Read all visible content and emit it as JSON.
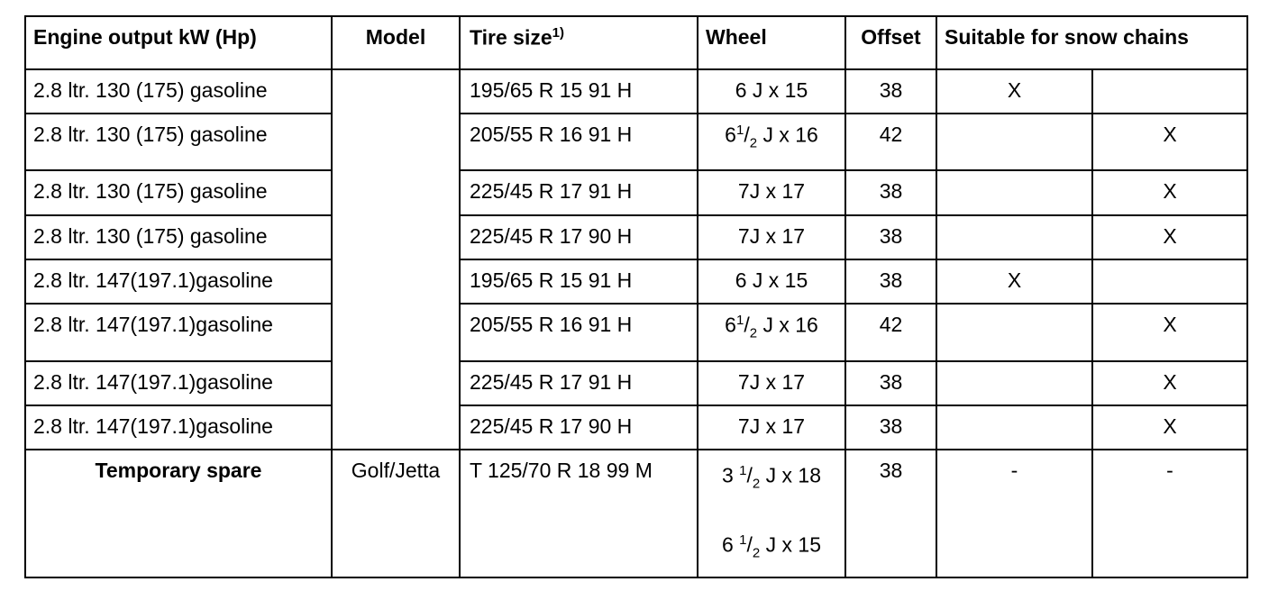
{
  "table": {
    "header": {
      "engine": "Engine output kW (Hp)",
      "model": "Model",
      "tire": {
        "text": "Tire size",
        "note": "1)"
      },
      "wheel": "Wheel",
      "offset": "Offset",
      "snow": "Suitable for snow chains"
    },
    "rows": [
      {
        "engine": "2.8 ltr. 130 (175) gasoline",
        "tire": "195/65 R 15 91 H",
        "wheel": "6 J x 15",
        "offset": 38,
        "snow_left": "X"
      },
      {
        "engine": "2.8 ltr. 130 (175) gasoline",
        "tire": "205/55 R 16 91 H",
        "wheel": {
          "whole": "6",
          "num": "1",
          "den": "2",
          "rest": "J x 16"
        },
        "offset": 42,
        "snow_right": "X"
      },
      {
        "engine": "2.8 ltr. 130 (175) gasoline",
        "tire": "225/45 R 17 91 H",
        "wheel": "7J x 17",
        "offset": 38,
        "snow_right": "X"
      },
      {
        "engine": "2.8 ltr. 130 (175) gasoline",
        "tire": "225/45 R 17 90 H",
        "wheel": "7J x 17",
        "offset": 38,
        "snow_right": "X"
      },
      {
        "engine": "2.8 ltr. 147(197.1)gasoline",
        "tire": "195/65 R 15 91 H",
        "wheel": "6 J x 15",
        "offset": 38,
        "snow_left": "X"
      },
      {
        "engine": "2.8 ltr. 147(197.1)gasoline",
        "tire": "205/55 R 16 91 H",
        "wheel": {
          "whole": "6",
          "num": "1",
          "den": "2",
          "rest": "J x 16"
        },
        "offset": 42,
        "snow_right": "X"
      },
      {
        "engine": "2.8 ltr. 147(197.1)gasoline",
        "tire": "225/45 R 17 91 H",
        "wheel": "7J x 17",
        "offset": 38,
        "snow_right": "X"
      },
      {
        "engine": "2.8 ltr. 147(197.1)gasoline",
        "tire": "225/45 R 17 90 H",
        "wheel": "7J x 17",
        "offset": 38,
        "snow_right": "X"
      }
    ],
    "spare": {
      "engine": "Temporary spare",
      "model": "Golf/Jetta",
      "tire": "T 125/70 R 18 99 M",
      "wheels": [
        {
          "whole": "3 ",
          "num": "1",
          "den": "2",
          "rest": "J x 18"
        },
        {
          "whole": "6 ",
          "num": "1",
          "den": "2",
          "rest": "J x 15"
        }
      ],
      "offset": 38,
      "snow_left": "-",
      "snow_right": "-"
    }
  }
}
